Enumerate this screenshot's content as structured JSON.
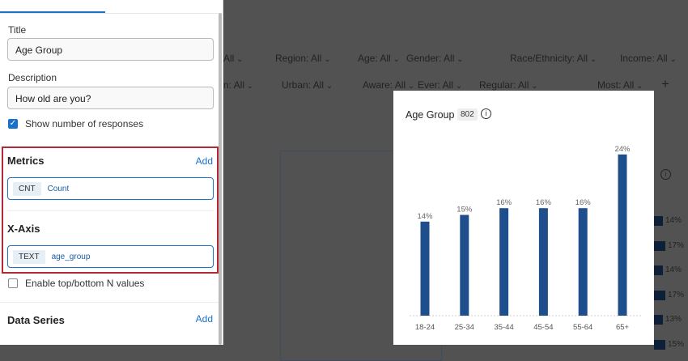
{
  "sidebar": {
    "title_label": "Title",
    "title_value": "Age Group",
    "description_label": "Description",
    "description_value": "How old are you?",
    "show_responses_label": "Show number of responses",
    "show_responses_checked": true,
    "metrics": {
      "heading": "Metrics",
      "add": "Add",
      "tag": "CNT",
      "value": "Count"
    },
    "xaxis": {
      "heading": "X-Axis",
      "tag": "TEXT",
      "value": "age_group"
    },
    "topn_label": "Enable top/bottom N values",
    "topn_checked": false,
    "data_series": {
      "heading": "Data Series",
      "add": "Add"
    },
    "highlight_color": "#b22a36"
  },
  "filters": {
    "row1": [
      "All",
      "Region: All",
      "Age: All",
      "Gender: All",
      "Race/Ethnicity: All",
      "Income: All"
    ],
    "row2": [
      "n: All",
      "Urban: All",
      "Aware: All",
      "Ever: All",
      "Regular: All",
      "Most: All"
    ],
    "add": "+"
  },
  "background_bars": [
    "14%",
    "17%",
    "14%",
    "17%",
    "13%",
    "15%"
  ],
  "chart_data": {
    "type": "bar",
    "title": "Age Group",
    "response_count": "802",
    "categories": [
      "18-24",
      "25-34",
      "35-44",
      "45-54",
      "55-64",
      "65+"
    ],
    "values": [
      14,
      15,
      16,
      16,
      16,
      24
    ],
    "labels": [
      "14%",
      "15%",
      "16%",
      "16%",
      "16%",
      "24%"
    ],
    "ylim": [
      0,
      25
    ],
    "grid": false,
    "bar_color": "#1f4e8c"
  }
}
